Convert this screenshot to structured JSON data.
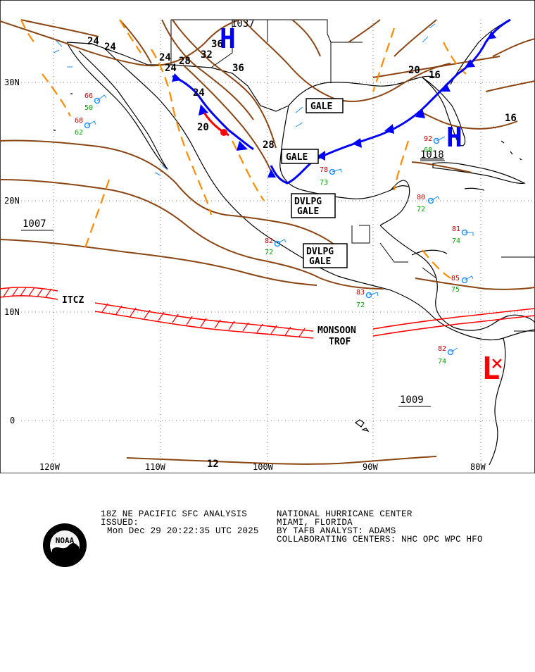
{
  "map": {
    "lat_labels": [
      "30N",
      "20N",
      "10N",
      "0"
    ],
    "lon_labels": [
      "120W",
      "110W",
      "100W",
      "90W",
      "80W"
    ],
    "features": {
      "itcz": "ITCZ",
      "monsoon_line1": "MONSOON",
      "monsoon_line2": "TROF"
    },
    "pressure_centers": [
      {
        "symbol": "H",
        "value": "1037",
        "color": "#0000ff"
      },
      {
        "symbol": "H",
        "value": "1018",
        "color": "#0000ff"
      },
      {
        "symbol": "L",
        "value": "",
        "color": "#ff0000"
      }
    ],
    "pressure_values": [
      "1007",
      "1009"
    ],
    "warnings": [
      {
        "line1": "GALE",
        "line2": ""
      },
      {
        "line1": "GALE",
        "line2": ""
      },
      {
        "line1": "DVLPG",
        "line2": "GALE"
      },
      {
        "line1": "DVLPG",
        "line2": "GALE"
      }
    ],
    "isobar_labels": [
      "24",
      "24",
      "24",
      "24",
      "28",
      "32",
      "36",
      "36",
      "20",
      "28",
      "24",
      "20",
      "16",
      "16",
      "12"
    ],
    "station_samples": [
      {
        "temp": "66",
        "dew": "50"
      },
      {
        "temp": "68",
        "dew": "62"
      },
      {
        "temp": "82",
        "dew": "72"
      },
      {
        "temp": "83",
        "dew": "72"
      },
      {
        "temp": "85",
        "dew": "75"
      },
      {
        "temp": "81",
        "dew": "74"
      },
      {
        "temp": "82",
        "dew": "74"
      },
      {
        "temp": "78",
        "dew": "73"
      },
      {
        "temp": "92",
        "dew": "68"
      },
      {
        "temp": "80",
        "dew": "72"
      }
    ]
  },
  "footer": {
    "line1": "18Z NE PACIFIC SFC ANALYSIS",
    "line2": "ISSUED:",
    "line3": "Mon Dec 29 20:22:35 UTC 2025",
    "center_line1": "NATIONAL HURRICANE CENTER",
    "center_line2": "MIAMI, FLORIDA",
    "center_line3": "BY TAFB ANALYST: ADAMS",
    "center_line4": "COLLABORATING CENTERS: NHC OPC WPC HFO",
    "logo_text": "NOAA"
  },
  "colors": {
    "isobar": "#8b4513",
    "trough": "#ff8c00",
    "cold_front": "#0000ff",
    "itcz": "#ff0000",
    "border": "#000000"
  }
}
